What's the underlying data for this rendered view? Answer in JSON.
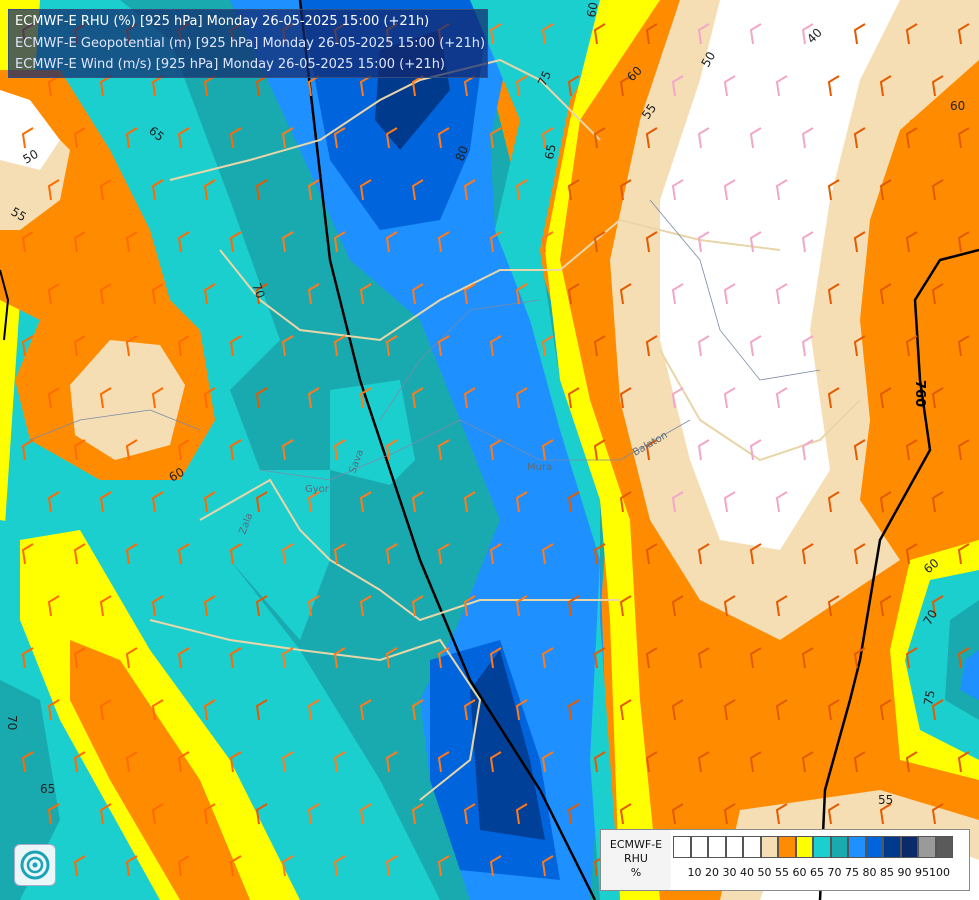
{
  "title_lines": [
    "ECMWF-E RHU (%) [925 hPa] Monday 26-05-2025 15:00 (+21h)",
    "ECMWF-E Geopotential (m) [925 hPa] Monday 26-05-2025 15:00 (+21h)",
    "ECMWF-E Wind (m/s) [925 hPa] Monday 26-05-2025 15:00 (+21h)"
  ],
  "legend": {
    "model": "ECMWF-E",
    "variable": "RHU",
    "unit": "%",
    "levels": [
      "10",
      "20",
      "30",
      "40",
      "50",
      "55",
      "60",
      "65",
      "70",
      "75",
      "80",
      "85",
      "90",
      "95",
      "100"
    ],
    "colors": [
      "#ffffff",
      "#ffffff",
      "#ffffff",
      "#ffffff",
      "#ffffff",
      "#f5deb3",
      "#ff8c00",
      "#ffff00",
      "#1ccfcf",
      "#19aab0",
      "#1e90ff",
      "#0064dc",
      "#003a8c",
      "#0a2a6a",
      "#9a9a9a",
      "#5a5a5a"
    ]
  },
  "contour_labels": [
    "50",
    "55",
    "60",
    "65",
    "70",
    "75",
    "80",
    "40",
    "60",
    "50",
    "55",
    "60",
    "65",
    "70",
    "75",
    "55",
    "65",
    "60",
    "60",
    "70",
    "760"
  ],
  "place_labels": [
    "Zala",
    "Gyor",
    "Balaton",
    "Mura",
    "Sava"
  ],
  "colors": {
    "white": "#ffffff",
    "wheat": "#f5deb3",
    "orange": "#ff8c00",
    "yellow": "#ffff00",
    "cyan": "#1ccfcf",
    "teal": "#19aab0",
    "blue1": "#1e90ff",
    "blue2": "#0064dc",
    "navy": "#003a8c"
  }
}
